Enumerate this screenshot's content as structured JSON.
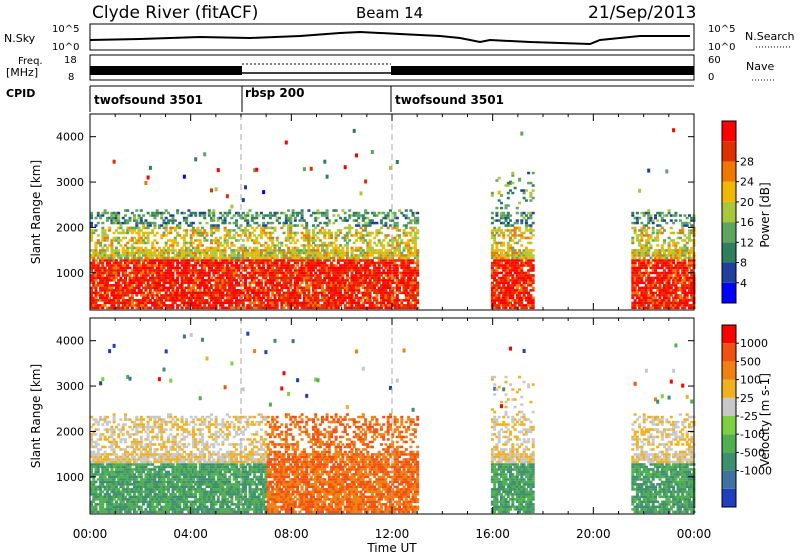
{
  "header": {
    "station": "Clyde River (fitACF)",
    "beam": "Beam 14",
    "date": "21/Sep/2013"
  },
  "status_panels": {
    "nsky_label": "N.Sky",
    "freq_label_1": "Freq.",
    "freq_label_2": "[MHz]",
    "cpid_label": "CPID",
    "nsearch_label": "N.Search",
    "nave_label": "Nave",
    "left_ticks_top": [
      "10^5",
      "10^0"
    ],
    "left_ticks_freq": [
      "18",
      "8"
    ],
    "right_ticks_top": [
      "10^5",
      "10^0"
    ],
    "right_ticks_freq": [
      "60",
      "0"
    ],
    "cpid_segments": [
      {
        "label": "twofsound 3501",
        "start_hour": 0,
        "end_hour": 6
      },
      {
        "label": "rbsp 200",
        "start_hour": 6,
        "end_hour": 12
      },
      {
        "label": "twofsound 3501",
        "start_hour": 12,
        "end_hour": 24
      }
    ]
  },
  "chart_data": [
    {
      "type": "heatmap",
      "title": "Power",
      "xlabel": "Time UT",
      "ylabel": "Slant Range [km]",
      "xlim": [
        0,
        24
      ],
      "ylim": [
        180,
        4500
      ],
      "yticks": [
        1000,
        2000,
        3000,
        4000
      ],
      "colorbar": {
        "label": "Power [dB]",
        "ticks": [
          "4",
          "8",
          "12",
          "16",
          "20",
          "24",
          "28"
        ],
        "colors": [
          "#0000ff",
          "#1f3f9f",
          "#2f7f5f",
          "#5fa55f",
          "#a8c83a",
          "#f2b800",
          "#f07800",
          "#e03000",
          "#ff0000"
        ]
      },
      "data_gaps_hours": [
        [
          13.0,
          15.9
        ],
        [
          17.6,
          21.5
        ]
      ]
    },
    {
      "type": "heatmap",
      "title": "Velocity",
      "xlabel": "Time UT",
      "ylabel": "Slant Range [km]",
      "xlim": [
        0,
        24
      ],
      "ylim": [
        180,
        4500
      ],
      "yticks": [
        1000,
        2000,
        3000,
        4000
      ],
      "colorbar": {
        "label": "Velocity [m s-1]",
        "ticks": [
          "1000",
          "500",
          "100",
          "25",
          "-25",
          "-100",
          "-500",
          "-1000"
        ],
        "colors": [
          "#1f3fbf",
          "#3f70a0",
          "#3f8f6f",
          "#50b050",
          "#7fd040",
          "#c8c8c8",
          "#f0b020",
          "#f08010",
          "#f05010",
          "#ff0000"
        ]
      },
      "data_gaps_hours": [
        [
          13.0,
          15.9
        ],
        [
          17.6,
          21.5
        ]
      ]
    }
  ],
  "time_axis": {
    "ticks": [
      "00:00",
      "04:00",
      "08:00",
      "12:00",
      "16:00",
      "20:00",
      "00:00"
    ],
    "label": "Time UT"
  }
}
